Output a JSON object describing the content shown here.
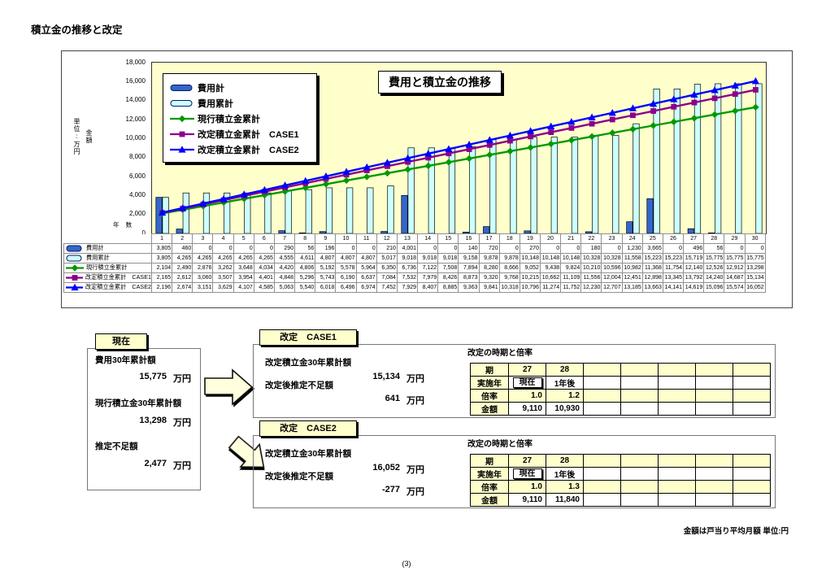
{
  "page": {
    "title": "積立金の推移と改定",
    "footnote": "金額は戸当り平均月額 単位:円",
    "page_number": "(3)"
  },
  "chart": {
    "title": "費用と積立金の推移",
    "y_unit_line1": "単位:万円",
    "y_unit_line2": "金額",
    "x_axis_label": "年 数"
  },
  "chart_data": {
    "type": "bar+line",
    "title": "費用と積立金の推移",
    "x": [
      1,
      2,
      3,
      4,
      5,
      6,
      7,
      8,
      9,
      10,
      11,
      12,
      13,
      14,
      15,
      16,
      17,
      18,
      19,
      20,
      21,
      22,
      23,
      24,
      25,
      26,
      27,
      28,
      29,
      30
    ],
    "ylim": [
      0,
      18000
    ],
    "ytick_step": 2000,
    "plot_bg": "#FFFFCC",
    "legend_position": "top-left-inside",
    "grid": false,
    "series": [
      {
        "name": "費用計",
        "type": "bar",
        "color": "#3366CC",
        "values": [
          3805,
          460,
          0,
          0,
          0,
          0,
          290,
          56,
          196,
          0,
          0,
          210,
          4001,
          0,
          0,
          140,
          720,
          0,
          270,
          0,
          0,
          180,
          0,
          1230,
          3665,
          0,
          496,
          56,
          0,
          0
        ]
      },
      {
        "name": "費用累計",
        "type": "bar",
        "color": "#CCFFFF",
        "values": [
          3805,
          4265,
          4265,
          4265,
          4265,
          4265,
          4555,
          4611,
          4807,
          4807,
          4807,
          5017,
          9018,
          9018,
          9018,
          9158,
          9878,
          9878,
          10148,
          10148,
          10148,
          10328,
          10328,
          11558,
          15223,
          15223,
          15719,
          15775,
          15775,
          15775
        ]
      },
      {
        "name": "現行積立金累計",
        "type": "line",
        "marker": "diamond",
        "color": "#009900",
        "values": [
          2104,
          2490,
          2876,
          3262,
          3648,
          4034,
          4420,
          4806,
          5192,
          5578,
          5964,
          6350,
          6736,
          7122,
          7508,
          7894,
          8280,
          8666,
          9052,
          9438,
          9824,
          10210,
          10596,
          10982,
          11368,
          11754,
          12140,
          12526,
          12912,
          13298
        ]
      },
      {
        "name": "改定積立金累計　CASE1",
        "type": "line",
        "marker": "square",
        "color": "#8B008B",
        "values": [
          2165,
          2612,
          3060,
          3507,
          3954,
          4401,
          4848,
          5296,
          5743,
          6190,
          6637,
          7084,
          7532,
          7979,
          8426,
          8873,
          9320,
          9768,
          10215,
          10662,
          11109,
          11556,
          12004,
          12451,
          12898,
          13345,
          13792,
          14240,
          14687,
          15134
        ]
      },
      {
        "name": "改定積立金累計　CASE2",
        "type": "line",
        "marker": "triangle",
        "color": "#0000FF",
        "values": [
          2196,
          2674,
          3151,
          3629,
          4107,
          4585,
          5063,
          5540,
          6018,
          6496,
          6974,
          7452,
          7929,
          8407,
          8885,
          9363,
          9841,
          10318,
          10796,
          11274,
          11752,
          12230,
          12707,
          13185,
          13663,
          14141,
          14619,
          15096,
          15574,
          16052
        ]
      }
    ]
  },
  "current_box": {
    "tab": "現在",
    "items": [
      {
        "label": "費用30年累計額",
        "value": "15,775",
        "unit": "万円"
      },
      {
        "label": "現行積立金30年累計額",
        "value": "13,298",
        "unit": "万円"
      },
      {
        "label": "推定不足額",
        "value": "2,477",
        "unit": "万円"
      }
    ]
  },
  "case1": {
    "tab": "改定　CASE1",
    "items": [
      {
        "label": "改定積立金30年累計額",
        "value": "15,134",
        "unit": "万円"
      },
      {
        "label": "改定後推定不足額",
        "value": "641",
        "unit": "万円"
      }
    ],
    "table_title": "改定の時期と倍率",
    "table": {
      "rows": [
        {
          "label": "期",
          "align": "c",
          "bg": "ylw",
          "cells": [
            "27",
            "28",
            "",
            "",
            "",
            "",
            ""
          ]
        },
        {
          "label": "実施年",
          "align": "c",
          "bg": "wht",
          "cells": [
            "現在",
            "1年後",
            "",
            "",
            "",
            "",
            ""
          ]
        },
        {
          "label": "倍率",
          "align": "r",
          "bg": "ylw",
          "cells": [
            "1.0",
            "1.2",
            "",
            "",
            "",
            "",
            ""
          ]
        },
        {
          "label": "金額",
          "align": "r",
          "bg": "wht",
          "cells": [
            "9,110",
            "10,930",
            "",
            "",
            "",
            "",
            ""
          ]
        }
      ]
    }
  },
  "case2": {
    "tab": "改定　CASE2",
    "items": [
      {
        "label": "改定積立金30年累計額",
        "value": "16,052",
        "unit": "万円"
      },
      {
        "label": "改定後推定不足額",
        "value": "-277",
        "unit": "万円"
      }
    ],
    "table_title": "改定の時期と倍率",
    "table": {
      "rows": [
        {
          "label": "期",
          "align": "c",
          "bg": "ylw",
          "cells": [
            "27",
            "28",
            "",
            "",
            "",
            "",
            ""
          ]
        },
        {
          "label": "実施年",
          "align": "c",
          "bg": "wht",
          "cells": [
            "現在",
            "1年後",
            "",
            "",
            "",
            "",
            ""
          ]
        },
        {
          "label": "倍率",
          "align": "r",
          "bg": "ylw",
          "cells": [
            "1.0",
            "1.3",
            "",
            "",
            "",
            "",
            ""
          ]
        },
        {
          "label": "金額",
          "align": "r",
          "bg": "wht",
          "cells": [
            "9,110",
            "11,840",
            "",
            "",
            "",
            "",
            ""
          ]
        }
      ]
    }
  }
}
